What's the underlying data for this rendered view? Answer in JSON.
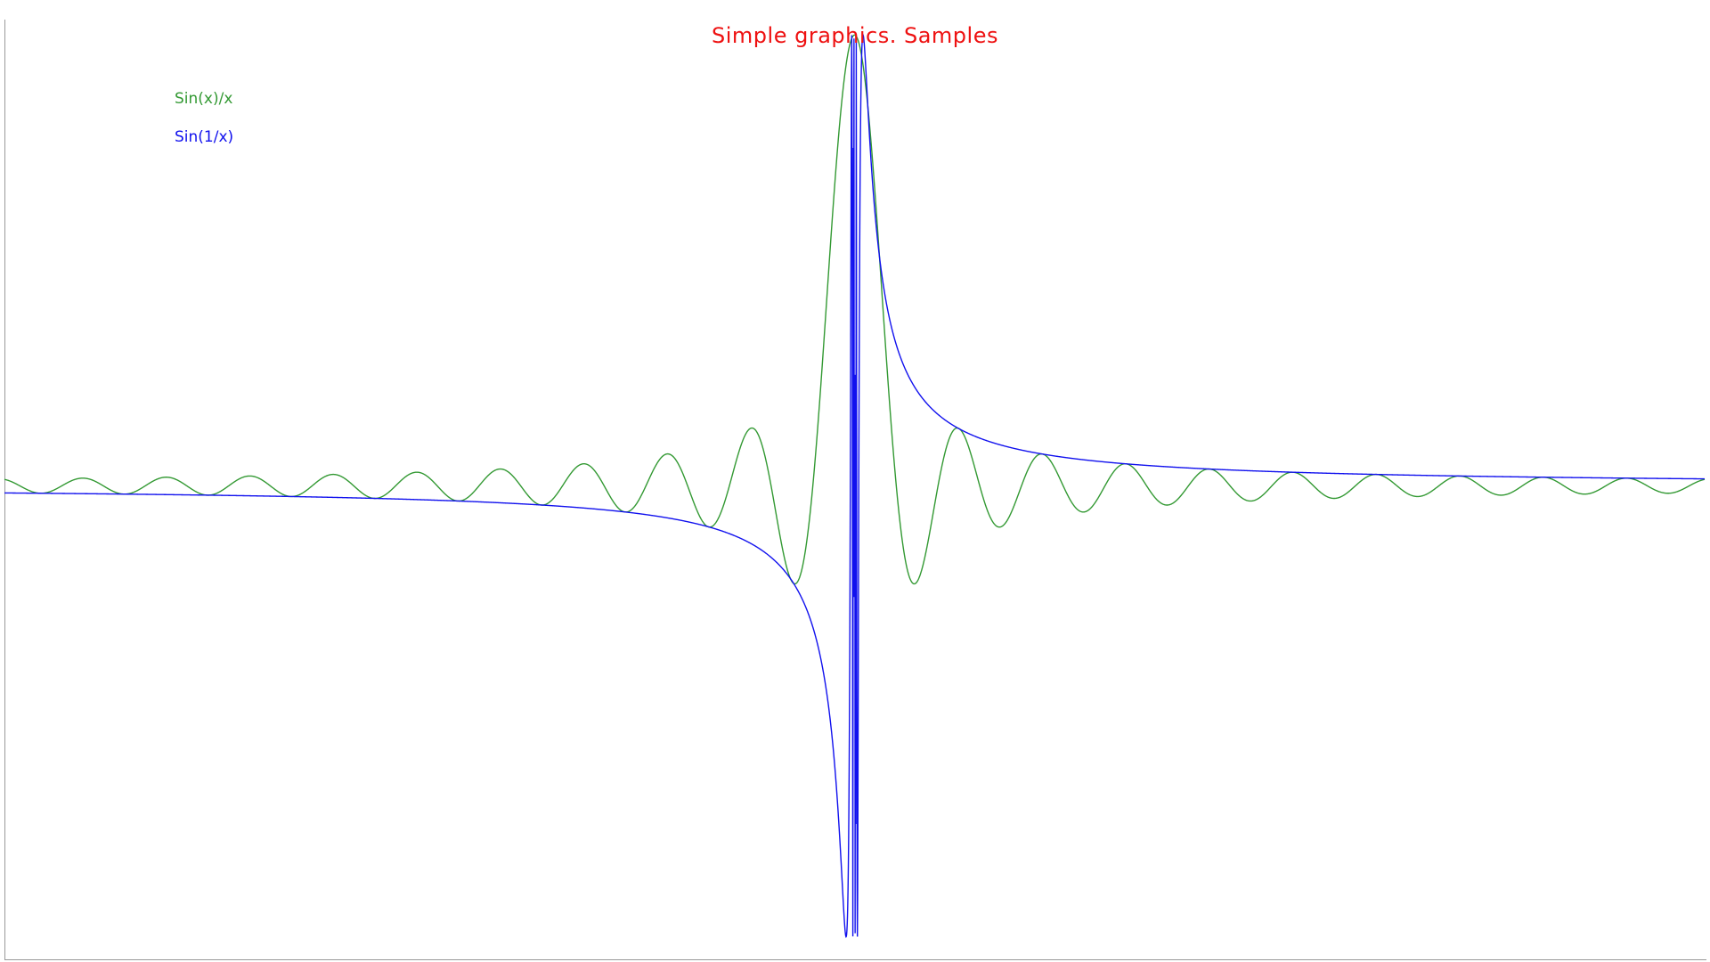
{
  "chart_data": {
    "type": "line",
    "title": "Simple graphics. Samples",
    "title_color": "#ee1111",
    "xlabel": "",
    "ylabel": "",
    "grid": false,
    "legend_placement": "top-left",
    "xlim": [
      -64,
      64
    ],
    "ylim": [
      -1.05,
      1.05
    ],
    "series": [
      {
        "name": "Sin(x)/x",
        "color": "#339933",
        "function": "sin(x)/x",
        "x_range": [
          -64,
          64
        ]
      },
      {
        "name": "Sin(1/x)",
        "color": "#1111ee",
        "function": "sin(1/x)",
        "x_range": [
          -64,
          64
        ]
      }
    ]
  }
}
